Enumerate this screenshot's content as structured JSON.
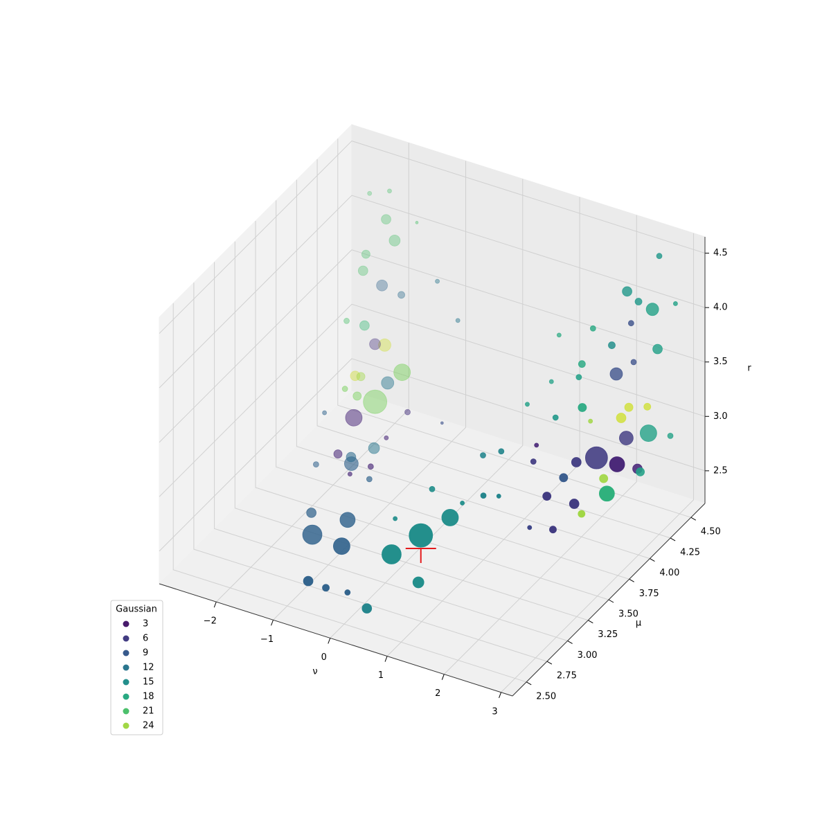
{
  "chart_data": {
    "type": "scatter3d",
    "xlabel": "ν",
    "ylabel": "μ",
    "zlabel": "r",
    "xlim": [
      -3,
      3.2
    ],
    "ylim": [
      2.33,
      4.67
    ],
    "zlim": [
      2.2,
      4.65
    ],
    "xticks": [
      {
        "value": -2,
        "label": "−2"
      },
      {
        "value": -1,
        "label": "−1"
      },
      0,
      1,
      2,
      3
    ],
    "yticks": [
      {
        "value": 2.5,
        "label": "2.50"
      },
      2.75,
      {
        "value": 3,
        "label": "3.00"
      },
      3.25,
      {
        "value": 3.5,
        "label": "3.50"
      },
      3.75,
      {
        "value": 4,
        "label": "4.00"
      },
      4.25,
      {
        "value": 4.5,
        "label": "4.50"
      }
    ],
    "zticks": [
      2.5,
      {
        "value": 3,
        "label": "3.0"
      },
      3.5,
      {
        "value": 4,
        "label": "4.0"
      },
      4.5
    ],
    "grid": true,
    "colormap": "viridis",
    "clim": [
      1,
      26
    ],
    "depthshade": true,
    "x": [
      0.87,
      0.5,
      0.95,
      1.26,
      0.5,
      -1.18,
      -0.52,
      -0.85,
      -1.63,
      -0.53,
      -0.22,
      0.16,
      -1.65,
      -1.8,
      -1.83,
      2.22,
      2.87,
      2.31,
      1.99,
      2.41,
      2.98,
      2.84,
      2.36,
      2.9,
      2.3,
      2.22,
      2.65,
      2.7,
      2.49,
      2.68,
      2.22,
      2.21,
      2.39,
      2.48,
      2.18,
      2.38,
      2.57,
      2.6,
      2.2,
      2.25,
      1.87,
      1.82,
      1.91,
      2.26,
      1.79,
      1.15,
      0.95,
      1.27,
      1.39,
      1.66,
      0.49,
      0.13,
      1.02,
      -2.1,
      -1.77,
      -1.88,
      -2.04,
      -2.22,
      -2.39,
      -2.34,
      -2.19,
      -2.34,
      -2.55,
      -2.6,
      -2.43,
      -2.27,
      -2.45,
      -2.35,
      -2.03,
      -2.27,
      -2,
      -2.63,
      -2.28,
      -2.6,
      -2.34,
      -2.41,
      -1.53,
      2.49,
      1.69,
      1.6,
      -1.44,
      -1.08,
      1.97,
      2.74,
      2.65,
      1.13,
      1.14,
      2.15,
      -1.8,
      -0.78,
      -1.47,
      -1.31,
      -1.53,
      -1.19
    ],
    "y": [
      2.83,
      2.73,
      3.13,
      2.53,
      2.43,
      2.93,
      2.83,
      3.13,
      3.23,
      2.43,
      2.43,
      2.43,
      3.73,
      3.83,
      4.13,
      4.03,
      3.83,
      4.33,
      4.43,
      4.53,
      3.63,
      3.33,
      3.33,
      3.03,
      3.73,
      3.63,
      4.23,
      4.23,
      3.93,
      3.53,
      4.33,
      4.43,
      4.53,
      4.53,
      4.43,
      4.43,
      4.53,
      4.53,
      4.23,
      4.43,
      4.23,
      4.13,
      4.03,
      3.83,
      3.83,
      3.93,
      3.53,
      3.53,
      3.23,
      3.23,
      3.23,
      3.03,
      3.23,
      4.33,
      4.43,
      4.33,
      4.03,
      4.53,
      4.53,
      4.58,
      4.63,
      4.63,
      4.53,
      4.53,
      4.43,
      4.23,
      4.33,
      4.33,
      3.83,
      3.73,
      4.58,
      4.63,
      4.63,
      4.33,
      4.13,
      3.93,
      4.33,
      3.03,
      3.63,
      3.73,
      4.63,
      4.63,
      4.13,
      4.63,
      4.63,
      4.33,
      4.23,
      4.53,
      4.63,
      4.23,
      4.03,
      3.73,
      3.63,
      3.63
    ],
    "z": [
      2.91,
      2.75,
      2.86,
      2.77,
      2.48,
      2.5,
      2.58,
      2.54,
      2.4,
      2.56,
      2.55,
      2.57,
      2.47,
      2.43,
      2.28,
      2.94,
      3.14,
      2.91,
      3.37,
      2.82,
      3.04,
      3.15,
      3.14,
      3.15,
      3.14,
      3.06,
      2.76,
      2.74,
      2.87,
      2.88,
      3.08,
      3.1,
      3.06,
      3.97,
      4.16,
      4.1,
      3.62,
      4.48,
      3.82,
      3.88,
      3.92,
      3.66,
      3.63,
      3.56,
      3.39,
      3.33,
      3.13,
      3.22,
      3.06,
      3.1,
      2.97,
      2.79,
      2.93,
      2.51,
      2.76,
      2.72,
      2.6,
      2.86,
      2.84,
      3.35,
      3.75,
      3.92,
      3.64,
      3.48,
      3.08,
      2.61,
      2.69,
      2.7,
      2.42,
      2.36,
      3.32,
      4.11,
      4.19,
      3.17,
      2.74,
      2.66,
      2.51,
      3.1,
      3.12,
      3.18,
      3.5,
      3.2,
      3.16,
      3.99,
      2.76,
      3.66,
      3.31,
      3.43,
      3.98,
      2.61,
      2.51,
      2.5,
      2.47,
      2.48
    ],
    "values": [
      15,
      15,
      15,
      15,
      14,
      10,
      10,
      10,
      10,
      10,
      10,
      10,
      10,
      11,
      12,
      6,
      4,
      6,
      8,
      17,
      19,
      6,
      6,
      6,
      6,
      9,
      4,
      17,
      24,
      24,
      25,
      25,
      25,
      17,
      16,
      16,
      17,
      16,
      15,
      8,
      18,
      18,
      17,
      18,
      16,
      17,
      14,
      14,
      14,
      14,
      15,
      15,
      15,
      23,
      23,
      12,
      4,
      25,
      5,
      10,
      21,
      21,
      21,
      21,
      20,
      23,
      25,
      24,
      4,
      10,
      11,
      21,
      21,
      21,
      23,
      10,
      5,
      7,
      6,
      4,
      12,
      12,
      24,
      17,
      17,
      18,
      17,
      8,
      21,
      8,
      4,
      4,
      4,
      10
    ],
    "sizes": [
      600,
      405,
      300,
      132,
      100,
      405,
      300,
      250,
      100,
      100,
      52,
      33,
      207,
      100,
      132,
      530,
      250,
      207,
      168,
      300,
      250,
      100,
      75,
      52,
      100,
      75,
      100,
      75,
      75,
      52,
      100,
      75,
      52,
      168,
      100,
      52,
      100,
      33,
      52,
      33,
      33,
      52,
      33,
      75,
      33,
      19,
      33,
      33,
      33,
      19,
      33,
      19,
      19,
      600,
      300,
      168,
      300,
      168,
      132,
      132,
      132,
      100,
      75,
      100,
      100,
      75,
      100,
      75,
      75,
      33,
      52,
      19,
      19,
      33,
      33,
      19,
      33,
      19,
      33,
      19,
      19,
      19,
      19,
      19,
      33,
      19,
      19,
      33,
      8,
      8,
      19,
      33,
      19,
      33
    ],
    "marker": {
      "x": 0.87,
      "y": 2.83,
      "z": 2.79,
      "color": "#e41a1c"
    },
    "legend": {
      "title": "Gaussian",
      "values": [
        3,
        6,
        9,
        12,
        15,
        18,
        21,
        24
      ],
      "loc": "lower left"
    }
  }
}
